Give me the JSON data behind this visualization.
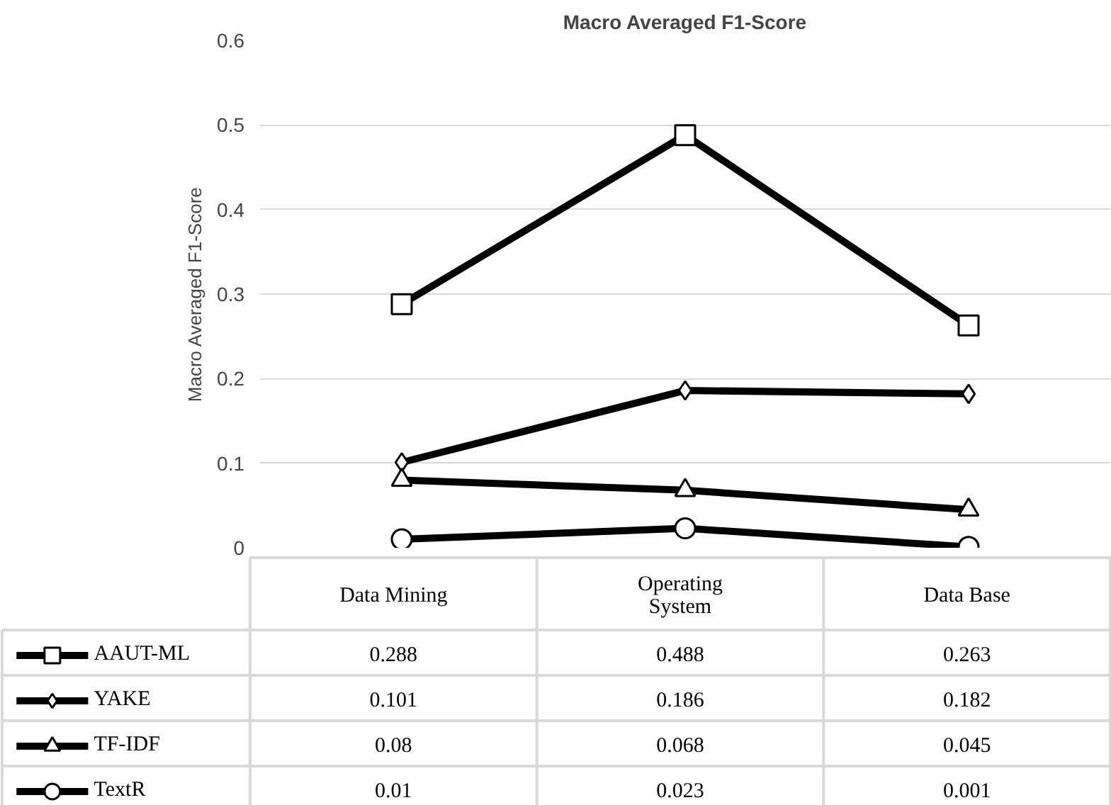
{
  "chart_data": {
    "type": "line",
    "title": "Macro Averaged F1-Score",
    "ylabel": "Macro Averaged F1-Score",
    "categories": [
      "Data Mining",
      "Operating System",
      "Data Base"
    ],
    "series": [
      {
        "name": "AAUT-ML",
        "color": "#000000",
        "marker": "square",
        "values": [
          0.288,
          0.488,
          0.263
        ]
      },
      {
        "name": "YAKE",
        "color": "#000000",
        "marker": "diamond",
        "values": [
          0.101,
          0.186,
          0.182
        ]
      },
      {
        "name": "TF-IDF",
        "color": "#000000",
        "marker": "triangle",
        "values": [
          0.08,
          0.068,
          0.045
        ]
      },
      {
        "name": "TextR",
        "color": "#000000",
        "marker": "circle",
        "values": [
          0.01,
          0.023,
          0.001
        ]
      }
    ],
    "ylim": [
      0,
      0.6
    ],
    "yticks": [
      0,
      0.1,
      0.2,
      0.3,
      0.4,
      0.5,
      0.6
    ],
    "grid": "y",
    "legend": "bottom",
    "data_labels": true,
    "line_style": "solid"
  }
}
